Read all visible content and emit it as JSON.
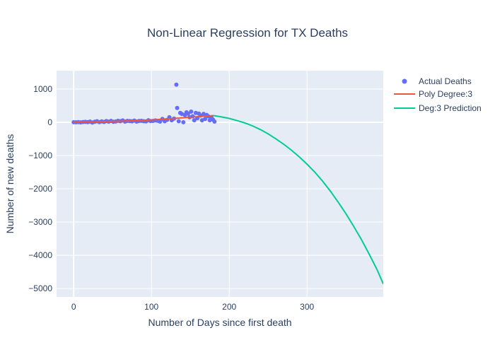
{
  "chart_data": {
    "type": "scatter",
    "title": "Non-Linear Regression for TX Deaths",
    "xlabel": "Number of Days since first death",
    "ylabel": "Number of new deaths",
    "xlim": [
      -22,
      398
    ],
    "ylim": [
      -5250,
      1550
    ],
    "x_ticks": [
      0,
      100,
      200,
      300
    ],
    "x_tick_labels": [
      "0",
      "100",
      "200",
      "300"
    ],
    "y_ticks": [
      1000,
      0,
      -1000,
      -2000,
      -3000,
      -4000,
      -5000
    ],
    "y_tick_labels": [
      "1000",
      "0",
      "−1000",
      "−2000",
      "−3000",
      "−4000",
      "−5000"
    ],
    "grid": true,
    "legend_position": "top-right",
    "colors": {
      "plot_bg": "#E5ECF6",
      "grid": "#FFFFFF",
      "actual": "#636EFA",
      "poly": "#EF553B",
      "prediction": "#00CC96",
      "text": "#2A3F5F"
    },
    "series": [
      {
        "name": "Actual Deaths",
        "type": "scatter",
        "color": "#636EFA",
        "x": [
          0,
          3,
          6,
          9,
          12,
          15,
          18,
          21,
          24,
          27,
          30,
          33,
          36,
          39,
          42,
          45,
          48,
          51,
          54,
          57,
          60,
          63,
          66,
          69,
          72,
          75,
          78,
          81,
          84,
          87,
          90,
          93,
          96,
          99,
          102,
          105,
          108,
          111,
          114,
          117,
          120,
          123,
          126,
          129,
          132,
          133,
          135,
          137,
          139,
          141,
          143,
          145,
          147,
          149,
          151,
          153,
          155,
          157,
          159,
          161,
          163,
          165,
          167,
          169,
          171,
          173,
          175,
          177,
          179,
          181
        ],
        "y": [
          2,
          0,
          5,
          -5,
          8,
          12,
          3,
          20,
          -10,
          15,
          30,
          5,
          25,
          10,
          35,
          18,
          40,
          15,
          22,
          45,
          30,
          55,
          20,
          40,
          35,
          28,
          50,
          20,
          38,
          45,
          30,
          25,
          60,
          35,
          40,
          55,
          45,
          20,
          100,
          30,
          70,
          150,
          60,
          110,
          1130,
          430,
          30,
          280,
          250,
          0,
          220,
          300,
          260,
          150,
          320,
          180,
          60,
          280,
          120,
          260,
          200,
          60,
          250,
          100,
          220,
          180,
          60,
          150,
          80,
          20
        ]
      },
      {
        "name": "Poly Degree:3",
        "type": "line",
        "color": "#EF553B",
        "x": [
          0,
          20,
          40,
          60,
          80,
          100,
          120,
          140,
          160,
          180
        ],
        "y": [
          12,
          14,
          20,
          30,
          46,
          70,
          100,
          135,
          170,
          200
        ]
      },
      {
        "name": "Deg:3 Prediction",
        "type": "line",
        "color": "#00CC96",
        "x": [
          180,
          190,
          200,
          210,
          220,
          230,
          240,
          250,
          260,
          270,
          280,
          290,
          300,
          310,
          320,
          330,
          340,
          350,
          360,
          370,
          380,
          390,
          398
        ],
        "y": [
          200,
          160,
          115,
          50,
          -20,
          -110,
          -220,
          -350,
          -500,
          -660,
          -840,
          -1040,
          -1260,
          -1500,
          -1770,
          -2070,
          -2400,
          -2750,
          -3130,
          -3530,
          -3970,
          -4430,
          -4860
        ]
      }
    ]
  }
}
